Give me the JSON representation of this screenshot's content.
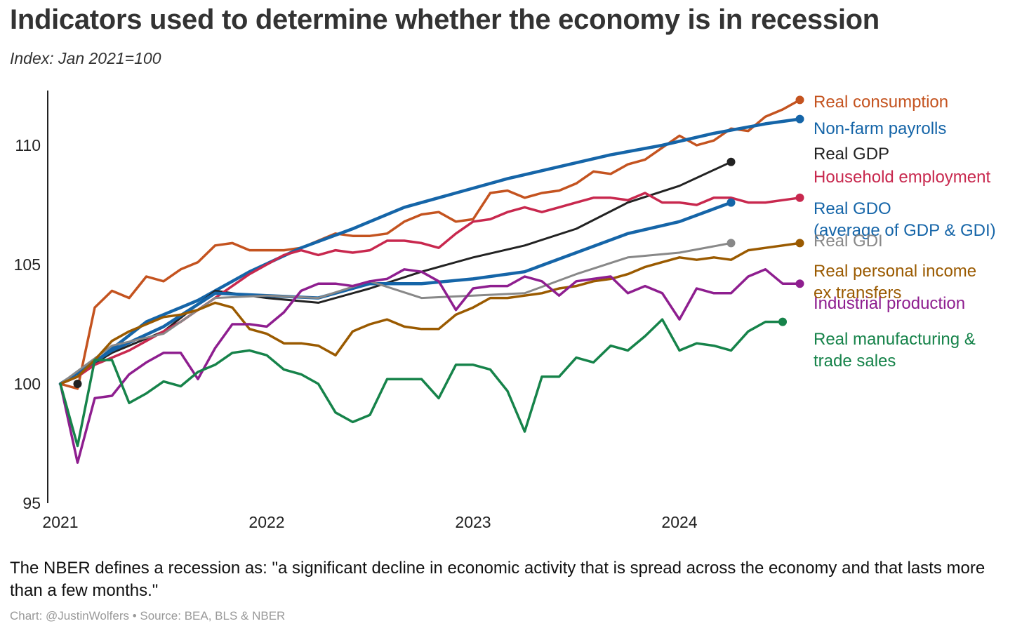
{
  "title": "Indicators used to determine whether the economy is in recession",
  "subtitle": "Index: Jan 2021=100",
  "note": "The NBER defines a recession as: \"a significant decline in economic activity that is spread across the economy and that lasts more than a few months.\"",
  "credit": "Chart: @JustinWolfers • Source: BEA, BLS & NBER",
  "chart_data": {
    "type": "line",
    "title": "Indicators used to determine whether the economy is in recession",
    "subtitle": "Index: Jan 2021=100",
    "x_axis": {
      "ticks": [
        "2021",
        "2022",
        "2023",
        "2024"
      ],
      "range": [
        "2021-01",
        "2024-12"
      ]
    },
    "y_axis": {
      "ticks": [
        95,
        100,
        105,
        110
      ],
      "range": [
        95,
        112
      ]
    },
    "grid": false,
    "legend": "direct labels at right",
    "series": [
      {
        "name": "Real consumption",
        "color": "#C4531F",
        "label_lines": [
          "Real consumption"
        ],
        "x": [
          "2021-01",
          "2021-02",
          "2021-03",
          "2021-04",
          "2021-05",
          "2021-06",
          "2021-07",
          "2021-08",
          "2021-09",
          "2021-10",
          "2021-11",
          "2021-12",
          "2022-01",
          "2022-02",
          "2022-03",
          "2022-04",
          "2022-05",
          "2022-06",
          "2022-07",
          "2022-08",
          "2022-09",
          "2022-10",
          "2022-11",
          "2022-12",
          "2023-01",
          "2023-02",
          "2023-03",
          "2023-04",
          "2023-05",
          "2023-06",
          "2023-07",
          "2023-08",
          "2023-09",
          "2023-10",
          "2023-11",
          "2023-12",
          "2024-01",
          "2024-02",
          "2024-03",
          "2024-04",
          "2024-05",
          "2024-06",
          "2024-07"
        ],
        "y": [
          100,
          99.8,
          103.2,
          103.9,
          103.6,
          104.5,
          104.3,
          104.8,
          105.1,
          105.8,
          105.9,
          105.6,
          105.6,
          105.6,
          105.7,
          106.0,
          106.3,
          106.2,
          106.2,
          106.3,
          106.8,
          107.1,
          107.2,
          106.8,
          106.9,
          108.0,
          108.1,
          107.8,
          108.0,
          108.1,
          108.4,
          108.9,
          108.8,
          109.2,
          109.4,
          109.9,
          110.4,
          110.0,
          110.2,
          110.7,
          110.6,
          111.2,
          111.5
        ],
        "end": [
          "2024-08",
          111.9
        ]
      },
      {
        "name": "Non-farm payrolls",
        "color": "#1565A8",
        "label_lines": [
          "Non-farm payrolls"
        ],
        "x": [
          "2021-01",
          "2021-03",
          "2021-06",
          "2021-09",
          "2021-12",
          "2022-03",
          "2022-06",
          "2022-09",
          "2022-12",
          "2023-03",
          "2023-06",
          "2023-09",
          "2023-12",
          "2024-03",
          "2024-06"
        ],
        "y": [
          100,
          100.9,
          102.6,
          103.5,
          104.7,
          105.7,
          106.5,
          107.4,
          108.0,
          108.6,
          109.1,
          109.6,
          110.0,
          110.5,
          110.9
        ],
        "end": [
          "2024-08",
          111.1
        ]
      },
      {
        "name": "Real GDP",
        "color": "#222222",
        "label_lines": [
          "Real GDP"
        ],
        "x": [
          "2021-01",
          "2021-04",
          "2021-07",
          "2021-10",
          "2022-01",
          "2022-04",
          "2022-07",
          "2022-10",
          "2023-01",
          "2023-04",
          "2023-07",
          "2023-10",
          "2024-01",
          "2024-04"
        ],
        "y": [
          100,
          101.3,
          102.2,
          103.9,
          103.6,
          103.4,
          104.0,
          104.7,
          105.3,
          105.8,
          106.5,
          107.6,
          108.3,
          109.3
        ],
        "end": [
          "2024-04",
          109.3
        ]
      },
      {
        "name": "Household employment",
        "color": "#C8284E",
        "label_lines": [
          "Household employment"
        ],
        "x": [
          "2021-01",
          "2021-02",
          "2021-03",
          "2021-04",
          "2021-05",
          "2021-06",
          "2021-07",
          "2021-08",
          "2021-09",
          "2021-10",
          "2021-11",
          "2021-12",
          "2022-01",
          "2022-02",
          "2022-03",
          "2022-04",
          "2022-05",
          "2022-06",
          "2022-07",
          "2022-08",
          "2022-09",
          "2022-10",
          "2022-11",
          "2022-12",
          "2023-01",
          "2023-02",
          "2023-03",
          "2023-04",
          "2023-05",
          "2023-06",
          "2023-07",
          "2023-08",
          "2023-09",
          "2023-10",
          "2023-11",
          "2023-12",
          "2024-01",
          "2024-02",
          "2024-03",
          "2024-04",
          "2024-05",
          "2024-06",
          "2024-07"
        ],
        "y": [
          100,
          100.3,
          100.8,
          101.1,
          101.4,
          101.8,
          102.2,
          102.6,
          103.1,
          103.6,
          104.1,
          104.6,
          105.0,
          105.4,
          105.6,
          105.4,
          105.6,
          105.5,
          105.6,
          106.0,
          106.0,
          105.9,
          105.7,
          106.3,
          106.8,
          106.9,
          107.2,
          107.4,
          107.2,
          107.4,
          107.6,
          107.8,
          107.8,
          107.7,
          108.0,
          107.6,
          107.6,
          107.5,
          107.8,
          107.8,
          107.6,
          107.6,
          107.7
        ],
        "end": [
          "2024-08",
          107.8
        ]
      },
      {
        "name": "Real GDO",
        "color": "#1565A8",
        "label_lines": [
          "Real GDO",
          "(average of GDP & GDI)"
        ],
        "x": [
          "2021-01",
          "2021-04",
          "2021-07",
          "2021-10",
          "2022-01",
          "2022-04",
          "2022-07",
          "2022-10",
          "2023-01",
          "2023-04",
          "2023-07",
          "2023-10",
          "2024-01",
          "2024-04"
        ],
        "y": [
          100,
          101.4,
          102.4,
          103.8,
          103.7,
          103.6,
          104.2,
          104.2,
          104.4,
          104.7,
          105.5,
          106.3,
          106.8,
          107.6
        ],
        "end": [
          "2024-04",
          107.6
        ]
      },
      {
        "name": "Real GDI",
        "color": "#888888",
        "label_lines": [
          "Real GDI"
        ],
        "x": [
          "2021-01",
          "2021-04",
          "2021-07",
          "2021-10",
          "2022-01",
          "2022-04",
          "2022-07",
          "2022-10",
          "2023-01",
          "2023-04",
          "2023-07",
          "2023-10",
          "2024-01",
          "2024-04"
        ],
        "y": [
          100,
          101.6,
          102.1,
          103.6,
          103.7,
          103.6,
          104.3,
          103.6,
          103.7,
          103.8,
          104.6,
          105.3,
          105.5,
          105.9
        ],
        "end": [
          "2024-04",
          105.9
        ]
      },
      {
        "name": "Real personal income ex transfers",
        "color": "#9A5A00",
        "label_lines": [
          "Real personal income",
          "ex transfers"
        ],
        "x": [
          "2021-01",
          "2021-02",
          "2021-03",
          "2021-04",
          "2021-05",
          "2021-06",
          "2021-07",
          "2021-08",
          "2021-09",
          "2021-10",
          "2021-11",
          "2021-12",
          "2022-01",
          "2022-02",
          "2022-03",
          "2022-04",
          "2022-05",
          "2022-06",
          "2022-07",
          "2022-08",
          "2022-09",
          "2022-10",
          "2022-11",
          "2022-12",
          "2023-01",
          "2023-02",
          "2023-03",
          "2023-04",
          "2023-05",
          "2023-06",
          "2023-07",
          "2023-08",
          "2023-09",
          "2023-10",
          "2023-11",
          "2023-12",
          "2024-01",
          "2024-02",
          "2024-03",
          "2024-04",
          "2024-05",
          "2024-06",
          "2024-07"
        ],
        "y": [
          100,
          100.3,
          101.0,
          101.8,
          102.2,
          102.5,
          102.8,
          102.9,
          103.1,
          103.4,
          103.2,
          102.3,
          102.1,
          101.7,
          101.7,
          101.6,
          101.2,
          102.2,
          102.5,
          102.7,
          102.4,
          102.3,
          102.3,
          102.9,
          103.2,
          103.6,
          103.6,
          103.7,
          103.8,
          104.0,
          104.1,
          104.3,
          104.4,
          104.6,
          104.9,
          105.1,
          105.3,
          105.2,
          105.3,
          105.2,
          105.6,
          105.7,
          105.8
        ],
        "end": [
          "2024-08",
          105.9
        ]
      },
      {
        "name": "Industrial production",
        "color": "#8E1E8F",
        "label_lines": [
          "Industrial production"
        ],
        "x": [
          "2021-01",
          "2021-02",
          "2021-03",
          "2021-04",
          "2021-05",
          "2021-06",
          "2021-07",
          "2021-08",
          "2021-09",
          "2021-10",
          "2021-11",
          "2021-12",
          "2022-01",
          "2022-02",
          "2022-03",
          "2022-04",
          "2022-05",
          "2022-06",
          "2022-07",
          "2022-08",
          "2022-09",
          "2022-10",
          "2022-11",
          "2022-12",
          "2023-01",
          "2023-02",
          "2023-03",
          "2023-04",
          "2023-05",
          "2023-06",
          "2023-07",
          "2023-08",
          "2023-09",
          "2023-10",
          "2023-11",
          "2023-12",
          "2024-01",
          "2024-02",
          "2024-03",
          "2024-04",
          "2024-05",
          "2024-06",
          "2024-07"
        ],
        "y": [
          100,
          96.7,
          99.4,
          99.5,
          100.4,
          100.9,
          101.3,
          101.3,
          100.2,
          101.5,
          102.5,
          102.5,
          102.4,
          103.0,
          103.9,
          104.2,
          104.2,
          104.1,
          104.3,
          104.4,
          104.8,
          104.7,
          104.3,
          103.1,
          104.0,
          104.1,
          104.1,
          104.5,
          104.3,
          103.7,
          104.3,
          104.4,
          104.5,
          103.8,
          104.1,
          103.8,
          102.7,
          104.0,
          103.8,
          103.8,
          104.5,
          104.8,
          104.2
        ],
        "end": [
          "2024-08",
          104.2
        ]
      },
      {
        "name": "Real manufacturing & trade sales",
        "color": "#16834A",
        "label_lines": [
          "Real manufacturing &",
          "trade sales"
        ],
        "x": [
          "2021-01",
          "2021-02",
          "2021-03",
          "2021-04",
          "2021-05",
          "2021-06",
          "2021-07",
          "2021-08",
          "2021-09",
          "2021-10",
          "2021-11",
          "2021-12",
          "2022-01",
          "2022-02",
          "2022-03",
          "2022-04",
          "2022-05",
          "2022-06",
          "2022-07",
          "2022-08",
          "2022-09",
          "2022-10",
          "2022-11",
          "2022-12",
          "2023-01",
          "2023-02",
          "2023-03",
          "2023-04",
          "2023-05",
          "2023-06",
          "2023-07",
          "2023-08",
          "2023-09",
          "2023-10",
          "2023-11",
          "2023-12",
          "2024-01",
          "2024-02",
          "2024-03",
          "2024-04",
          "2024-05",
          "2024-06"
        ],
        "y": [
          100,
          97.4,
          101.0,
          101.0,
          99.2,
          99.6,
          100.1,
          99.9,
          100.5,
          100.8,
          101.3,
          101.4,
          101.2,
          100.6,
          100.4,
          100.0,
          98.8,
          98.4,
          98.7,
          100.2,
          100.2,
          100.2,
          99.4,
          100.8,
          100.8,
          100.6,
          99.7,
          98.0,
          100.3,
          100.3,
          101.1,
          100.9,
          101.6,
          101.4,
          102.0,
          102.7,
          101.4,
          101.7,
          101.6,
          101.4,
          102.2,
          102.6
        ],
        "end": [
          "2024-07",
          102.6
        ]
      }
    ]
  }
}
